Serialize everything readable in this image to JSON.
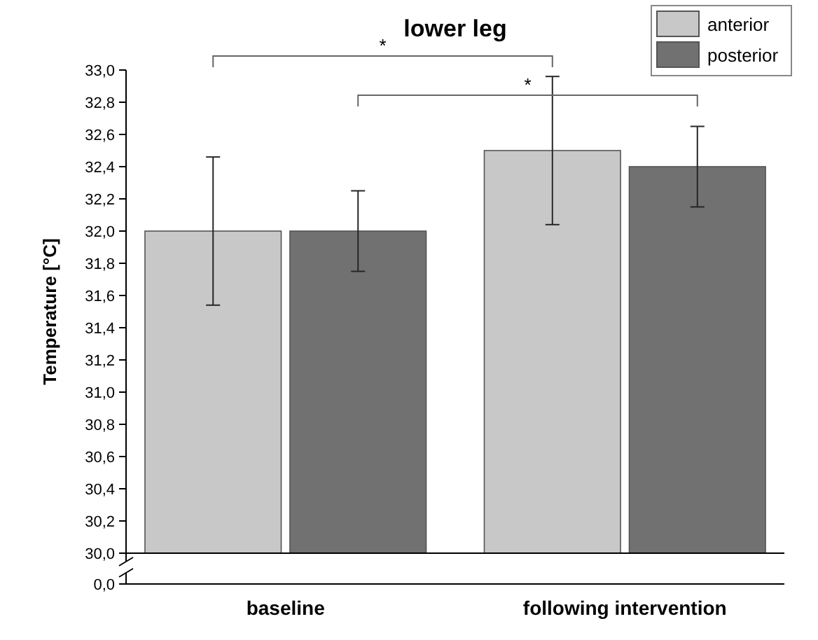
{
  "chart_data": {
    "type": "bar",
    "title": "lower leg",
    "ylabel": "Temperature [°C]",
    "categories": [
      "baseline",
      "following intervention"
    ],
    "series": [
      {
        "name": "anterior",
        "color": "#c8c8c8",
        "values": [
          32.0,
          32.5
        ],
        "errors": [
          [
            31.54,
            32.46
          ],
          [
            32.04,
            32.96
          ]
        ]
      },
      {
        "name": "posterior",
        "color": "#717171",
        "values": [
          32.0,
          32.4
        ],
        "errors": [
          [
            31.75,
            32.25
          ],
          [
            32.15,
            32.65
          ]
        ]
      }
    ],
    "ylim": [
      30,
      33
    ],
    "yticks": [
      {
        "value": 30,
        "label": "30,0"
      },
      {
        "value": 30.2,
        "label": "30,2"
      },
      {
        "value": 30.4,
        "label": "30,4"
      },
      {
        "value": 30.6,
        "label": "30,6"
      },
      {
        "value": 30.8,
        "label": "30,8"
      },
      {
        "value": 31,
        "label": "31,0"
      },
      {
        "value": 31.2,
        "label": "31,2"
      },
      {
        "value": 31.4,
        "label": "31,4"
      },
      {
        "value": 31.6,
        "label": "31,6"
      },
      {
        "value": 31.8,
        "label": "31,8"
      },
      {
        "value": 32,
        "label": "32,0"
      },
      {
        "value": 32.2,
        "label": "32,2"
      },
      {
        "value": 32.4,
        "label": "32,4"
      },
      {
        "value": 32.6,
        "label": "32,6"
      },
      {
        "value": 32.8,
        "label": "32,8"
      },
      {
        "value": 33,
        "label": "33,0"
      }
    ],
    "annotations": [
      "*",
      "*",
      "0,0"
    ],
    "legend": "top right",
    "grid": false
  }
}
